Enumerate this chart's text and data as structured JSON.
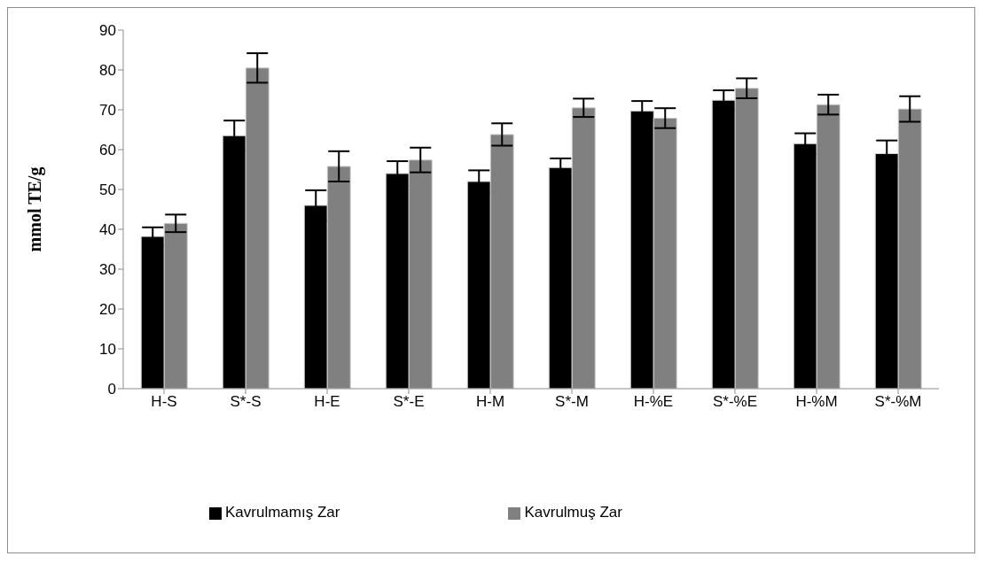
{
  "chart_data": {
    "type": "bar",
    "ylabel": "mmol TE/g",
    "categories": [
      "H-S",
      "S*-S",
      "H-E",
      "S*-E",
      "H-M",
      "S*-M",
      "H-%E",
      "S*-%E",
      "H-%M",
      "S*-%M"
    ],
    "series": [
      {
        "name": "Kavrulmamış Zar",
        "color": "#000000",
        "values": [
          38.2,
          63.5,
          46,
          54,
          52,
          55.5,
          69.7,
          72.4,
          61.5,
          59
        ],
        "errors": [
          2.3,
          3.8,
          3.8,
          3.1,
          2.8,
          2.3,
          2.5,
          2.5,
          2.6,
          3.3
        ]
      },
      {
        "name": "Kavrulmuş Zar",
        "color": "#808080",
        "values": [
          41.5,
          80.5,
          55.8,
          57.4,
          63.8,
          70.5,
          67.9,
          75.4,
          71.3,
          70.2
        ],
        "errors": [
          2.2,
          3.7,
          3.8,
          3.1,
          2.8,
          2.3,
          2.5,
          2.5,
          2.5,
          3.2
        ]
      }
    ],
    "ylim": [
      0,
      90
    ],
    "yticks": [
      0,
      10,
      20,
      30,
      40,
      50,
      60,
      70,
      80,
      90
    ],
    "grid": false,
    "legend": "bottom"
  }
}
